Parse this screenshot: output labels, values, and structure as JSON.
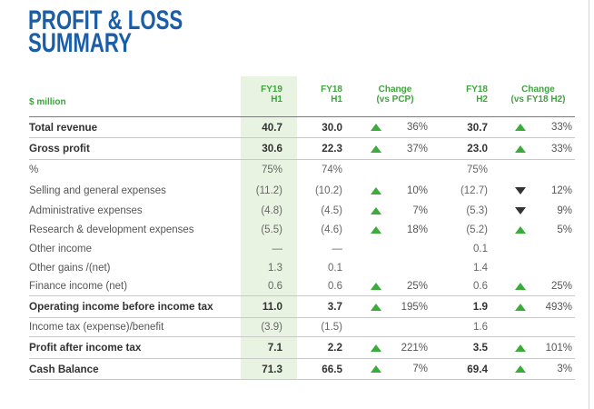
{
  "title": {
    "line1": "PROFIT & LOSS",
    "line2": "SUMMARY"
  },
  "colors": {
    "title_blue": "#1a5ea8",
    "header_green": "#3fa33f",
    "arrow_up_green": "#3aac3a",
    "arrow_down_dark": "#333333",
    "highlight_column_bg": "#e8f4e1"
  },
  "table": {
    "unit_label": "$ million",
    "headers": {
      "fy19_h1": [
        "FY19",
        "H1"
      ],
      "fy18_h1": [
        "FY18",
        "H1"
      ],
      "change_pcp": [
        "Change",
        "(vs PCP)"
      ],
      "fy18_h2": [
        "FY18",
        "H2"
      ],
      "change_fy18_h2": [
        "Change",
        "(vs FY18 H2)"
      ]
    },
    "rows": [
      {
        "label": "Total revenue",
        "total": true,
        "fy19_h1": "40.7",
        "fy18_h1": "30.0",
        "change_pcp": {
          "icon": "triangle-up-icon",
          "value": "36%"
        },
        "fy18_h2": "30.7",
        "change_fy18_h2": {
          "icon": "triangle-up-icon",
          "value": "33%"
        }
      },
      {
        "label": "Gross profit",
        "total": true,
        "fy19_h1": "30.6",
        "fy18_h1": "22.3",
        "change_pcp": {
          "icon": "triangle-up-icon",
          "value": "37%"
        },
        "fy18_h2": "23.0",
        "change_fy18_h2": {
          "icon": "triangle-up-icon",
          "value": "33%"
        }
      },
      {
        "label": "%",
        "total": false,
        "fy19_h1": "75%",
        "fy18_h1": "74%",
        "fy18_h2": "75%"
      },
      {
        "label": "Selling and general expenses",
        "total": false,
        "fy19_h1": "(11.2)",
        "fy18_h1": "(10.2)",
        "change_pcp": {
          "icon": "triangle-up-icon",
          "value": "10%"
        },
        "fy18_h2": "(12.7)",
        "change_fy18_h2": {
          "icon": "triangle-down-icon",
          "value": "12%"
        }
      },
      {
        "label": "Administrative expenses",
        "total": false,
        "fy19_h1": "(4.8)",
        "fy18_h1": "(4.5)",
        "change_pcp": {
          "icon": "triangle-up-icon",
          "value": "7%"
        },
        "fy18_h2": "(5.3)",
        "change_fy18_h2": {
          "icon": "triangle-down-icon",
          "value": "9%"
        }
      },
      {
        "label": "Research & development expenses",
        "total": false,
        "fy19_h1": "(5.5)",
        "fy18_h1": "(4.6)",
        "change_pcp": {
          "icon": "triangle-up-icon",
          "value": "18%"
        },
        "fy18_h2": "(5.2)",
        "change_fy18_h2": {
          "icon": "triangle-up-icon",
          "value": "5%"
        }
      },
      {
        "label": "Other income",
        "total": false,
        "fy19_h1": "—",
        "fy18_h1": "—",
        "fy18_h2": "0.1"
      },
      {
        "label": "Other gains /(net)",
        "total": false,
        "fy19_h1": "1.3",
        "fy18_h1": "0.1",
        "fy18_h2": "1.4"
      },
      {
        "label": "Finance income (net)",
        "total": false,
        "fy19_h1": "0.6",
        "fy18_h1": "0.6",
        "change_pcp": {
          "icon": "triangle-up-icon",
          "value": "25%"
        },
        "fy18_h2": "0.6",
        "change_fy18_h2": {
          "icon": "triangle-up-icon",
          "value": "25%"
        }
      },
      {
        "label": "Operating income before income tax",
        "total": true,
        "fy19_h1": "11.0",
        "fy18_h1": "3.7",
        "change_pcp": {
          "icon": "triangle-up-icon",
          "value": "195%"
        },
        "fy18_h2": "1.9",
        "change_fy18_h2": {
          "icon": "triangle-up-icon",
          "value": "493%"
        }
      },
      {
        "label": "Income tax (expense)/benefit",
        "total": false,
        "fy19_h1": "(3.9)",
        "fy18_h1": "(1.5)",
        "fy18_h2": "1.6"
      },
      {
        "label": "Profit after income tax",
        "total": true,
        "fy19_h1": "7.1",
        "fy18_h1": "2.2",
        "change_pcp": {
          "icon": "triangle-up-icon",
          "value": "221%"
        },
        "fy18_h2": "3.5",
        "change_fy18_h2": {
          "icon": "triangle-up-icon",
          "value": "101%"
        }
      },
      {
        "label": "Cash Balance",
        "total": true,
        "fy19_h1": "71.3",
        "fy18_h1": "66.5",
        "change_pcp": {
          "icon": "triangle-up-icon",
          "value": "7%"
        },
        "fy18_h2": "69.4",
        "change_fy18_h2": {
          "icon": "triangle-up-icon",
          "value": "3%"
        }
      }
    ]
  }
}
